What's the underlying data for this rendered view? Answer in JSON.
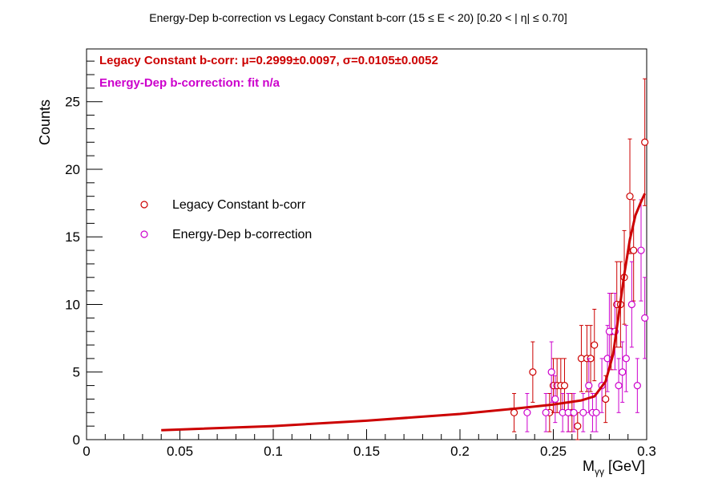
{
  "chart_data": {
    "type": "scatter",
    "title": "Energy-Dep b-correction vs Legacy Constant b-corr   (15       ≤ E < 20)   [0.20 < |  η| ≤ 0.70]",
    "xlabel_main": "M",
    "xlabel_sub": "γγ",
    "xlabel_unit": " [GeV]",
    "ylabel": "Counts",
    "xlim": [
      0,
      0.3
    ],
    "ylim": [
      0,
      28.9
    ],
    "x_ticks": [
      0,
      0.05,
      0.1,
      0.15,
      0.2,
      0.25,
      0.3
    ],
    "x_tick_labels": [
      "0",
      "0.05",
      "0.1",
      "0.15",
      "0.2",
      "0.25",
      "0.3"
    ],
    "y_ticks": [
      0,
      5,
      10,
      15,
      20,
      25
    ],
    "y_tick_labels": [
      "0",
      "5",
      "10",
      "15",
      "20",
      "25"
    ],
    "grid": false,
    "legend_placement": "left-middle",
    "stats": [
      {
        "text": "Legacy Constant b-corr: μ=0.2999±0.0097,  σ=0.0105±0.0052",
        "color": "#cc0000"
      },
      {
        "text": "Energy-Dep b-correction:  fit n/a",
        "color": "#cc00cc"
      }
    ],
    "series": [
      {
        "name": "Legacy Constant b-corr",
        "color": "#cc0000",
        "marker": "open-circle",
        "points": [
          {
            "x": 0.229,
            "y": 2
          },
          {
            "x": 0.239,
            "y": 5
          },
          {
            "x": 0.248,
            "y": 2
          },
          {
            "x": 0.25,
            "y": 4
          },
          {
            "x": 0.252,
            "y": 4
          },
          {
            "x": 0.254,
            "y": 4
          },
          {
            "x": 0.256,
            "y": 4
          },
          {
            "x": 0.258,
            "y": 2
          },
          {
            "x": 0.26,
            "y": 2
          },
          {
            "x": 0.263,
            "y": 1
          },
          {
            "x": 0.265,
            "y": 6
          },
          {
            "x": 0.268,
            "y": 6
          },
          {
            "x": 0.27,
            "y": 6
          },
          {
            "x": 0.272,
            "y": 7
          },
          {
            "x": 0.278,
            "y": 3
          },
          {
            "x": 0.281,
            "y": 8
          },
          {
            "x": 0.284,
            "y": 10
          },
          {
            "x": 0.286,
            "y": 10
          },
          {
            "x": 0.288,
            "y": 12
          },
          {
            "x": 0.291,
            "y": 18
          },
          {
            "x": 0.293,
            "y": 14
          },
          {
            "x": 0.299,
            "y": 22
          }
        ]
      },
      {
        "name": "Energy-Dep b-correction",
        "color": "#cc00cc",
        "marker": "open-circle",
        "points": [
          {
            "x": 0.236,
            "y": 2
          },
          {
            "x": 0.246,
            "y": 2
          },
          {
            "x": 0.249,
            "y": 5
          },
          {
            "x": 0.251,
            "y": 3
          },
          {
            "x": 0.255,
            "y": 2
          },
          {
            "x": 0.258,
            "y": 2
          },
          {
            "x": 0.261,
            "y": 2
          },
          {
            "x": 0.266,
            "y": 2
          },
          {
            "x": 0.269,
            "y": 4
          },
          {
            "x": 0.271,
            "y": 2
          },
          {
            "x": 0.273,
            "y": 2
          },
          {
            "x": 0.276,
            "y": 4
          },
          {
            "x": 0.279,
            "y": 6
          },
          {
            "x": 0.28,
            "y": 8
          },
          {
            "x": 0.283,
            "y": 8
          },
          {
            "x": 0.285,
            "y": 4
          },
          {
            "x": 0.287,
            "y": 5
          },
          {
            "x": 0.289,
            "y": 6
          },
          {
            "x": 0.292,
            "y": 10
          },
          {
            "x": 0.295,
            "y": 4
          },
          {
            "x": 0.297,
            "y": 14
          },
          {
            "x": 0.299,
            "y": 9
          }
        ]
      }
    ],
    "fit_curve": {
      "color": "#cc0000",
      "points": [
        {
          "x": 0.04,
          "y": 0.7
        },
        {
          "x": 0.1,
          "y": 1.0
        },
        {
          "x": 0.15,
          "y": 1.4
        },
        {
          "x": 0.2,
          "y": 1.9
        },
        {
          "x": 0.23,
          "y": 2.3
        },
        {
          "x": 0.25,
          "y": 2.6
        },
        {
          "x": 0.265,
          "y": 2.9
        },
        {
          "x": 0.272,
          "y": 3.2
        },
        {
          "x": 0.278,
          "y": 4.3
        },
        {
          "x": 0.282,
          "y": 6.3
        },
        {
          "x": 0.285,
          "y": 9.2
        },
        {
          "x": 0.288,
          "y": 12.2
        },
        {
          "x": 0.291,
          "y": 14.8
        },
        {
          "x": 0.294,
          "y": 16.6
        },
        {
          "x": 0.297,
          "y": 17.6
        },
        {
          "x": 0.299,
          "y": 18.2
        }
      ]
    }
  }
}
